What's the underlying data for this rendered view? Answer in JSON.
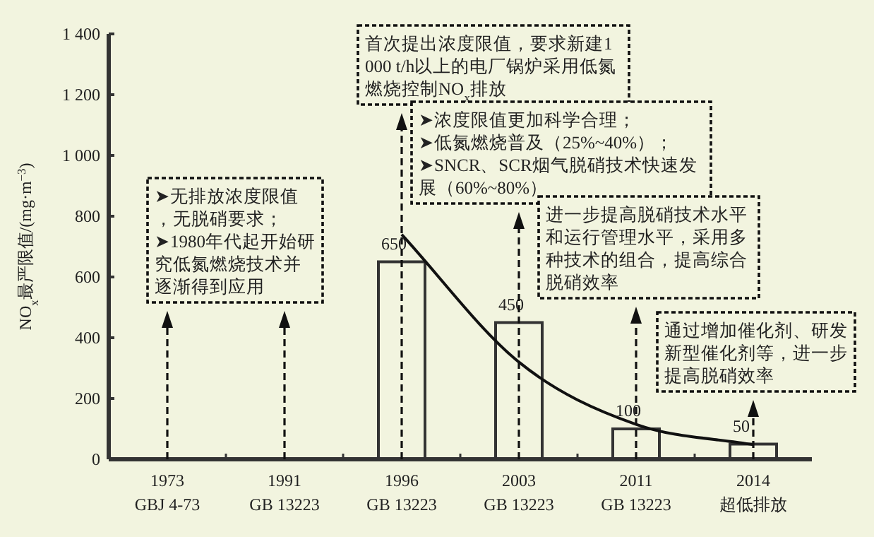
{
  "chart_data": {
    "type": "bar",
    "ylabel": "NO$_{x}$最严限值/(mg·m$^{−3}$)",
    "categories": [
      "1973\nGBJ 4-73",
      "1991\nGB 13223",
      "1996\nGB 13223",
      "2003\nGB 13223",
      "2011\nGB 13223",
      "2014\n超低排放"
    ],
    "series": [
      {
        "type": "bar",
        "color": "#333333",
        "values": [
          null,
          null,
          650,
          450,
          100,
          50
        ],
        "value_labels": [
          null,
          null,
          "650",
          "450",
          "100",
          "50"
        ]
      },
      {
        "type": "line",
        "color": "#111111",
        "values": [
          null,
          null,
          740,
          320,
          115,
          48
        ]
      }
    ],
    "ylim": [
      0,
      1400
    ],
    "yticks": [
      0,
      200,
      400,
      600,
      800,
      {
        "value": 1000,
        "label": "1 000"
      },
      {
        "value": 1200,
        "label": "1 200"
      },
      {
        "value": 1400,
        "label": "1 400"
      }
    ],
    "annotations": [
      "➤无排放浓度限值，无脱硝要求；\n➤1980年代起开始研究低氮燃烧技术并逐渐得到应用",
      "首次提出浓度限值，要求新建1 000 t/h以上的电厂锅炉采用低氮燃烧控制NO$_{x}$排放",
      "➤浓度限值更加科学合理；\n➤低氮燃烧普及（25%~40%）；\n➤SNCR、SCR烟气脱硝技术快速发展（60%~80%）",
      "进一步提高脱硝技术水平和运行管理水平，采用多种技术的组合，提高综合脱硝效率",
      "通过增加催化剂、研发新型催化剂等，进一步提高脱硝效率"
    ]
  }
}
